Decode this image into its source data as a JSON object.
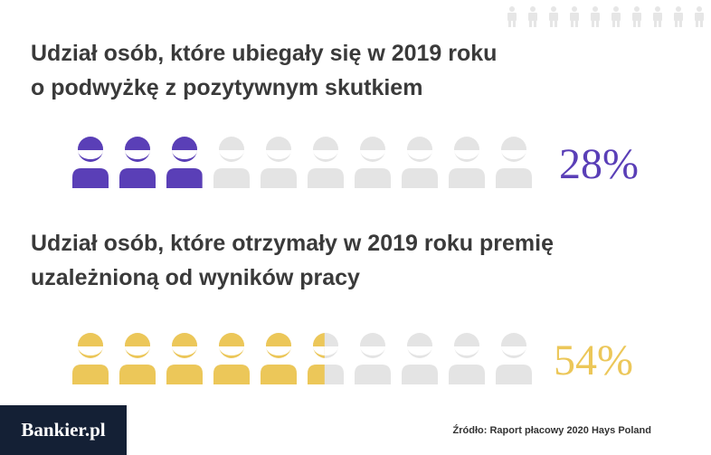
{
  "colors": {
    "chart1_fill": "#5a3fb7",
    "chart2_fill": "#ecc759",
    "empty_fill": "#e4e4e4",
    "heading_text": "#3a3a3a",
    "brand_bg": "#142035",
    "decor_icons": "#e6e6e6"
  },
  "icons": {
    "pictogram": "person-smiling-icon",
    "decoration": "person-icon"
  },
  "chart_data": [
    {
      "type": "pictogram",
      "title": [
        "Udział osób, które ubiegały się w 2019 roku",
        "o podwyżkę z pozytywnym skutkiem"
      ],
      "value_label": "28%",
      "value": 28,
      "units_total": 10
    },
    {
      "type": "pictogram",
      "title": [
        "Udział osób, które otrzymały w 2019 roku premię",
        "uzależnioną od wyników pracy"
      ],
      "value_label": "54%",
      "value": 54,
      "units_total": 10
    }
  ],
  "footer": {
    "brand": "Bankier.pl",
    "source": "Źródło: Raport płacowy 2020 Hays Poland"
  }
}
